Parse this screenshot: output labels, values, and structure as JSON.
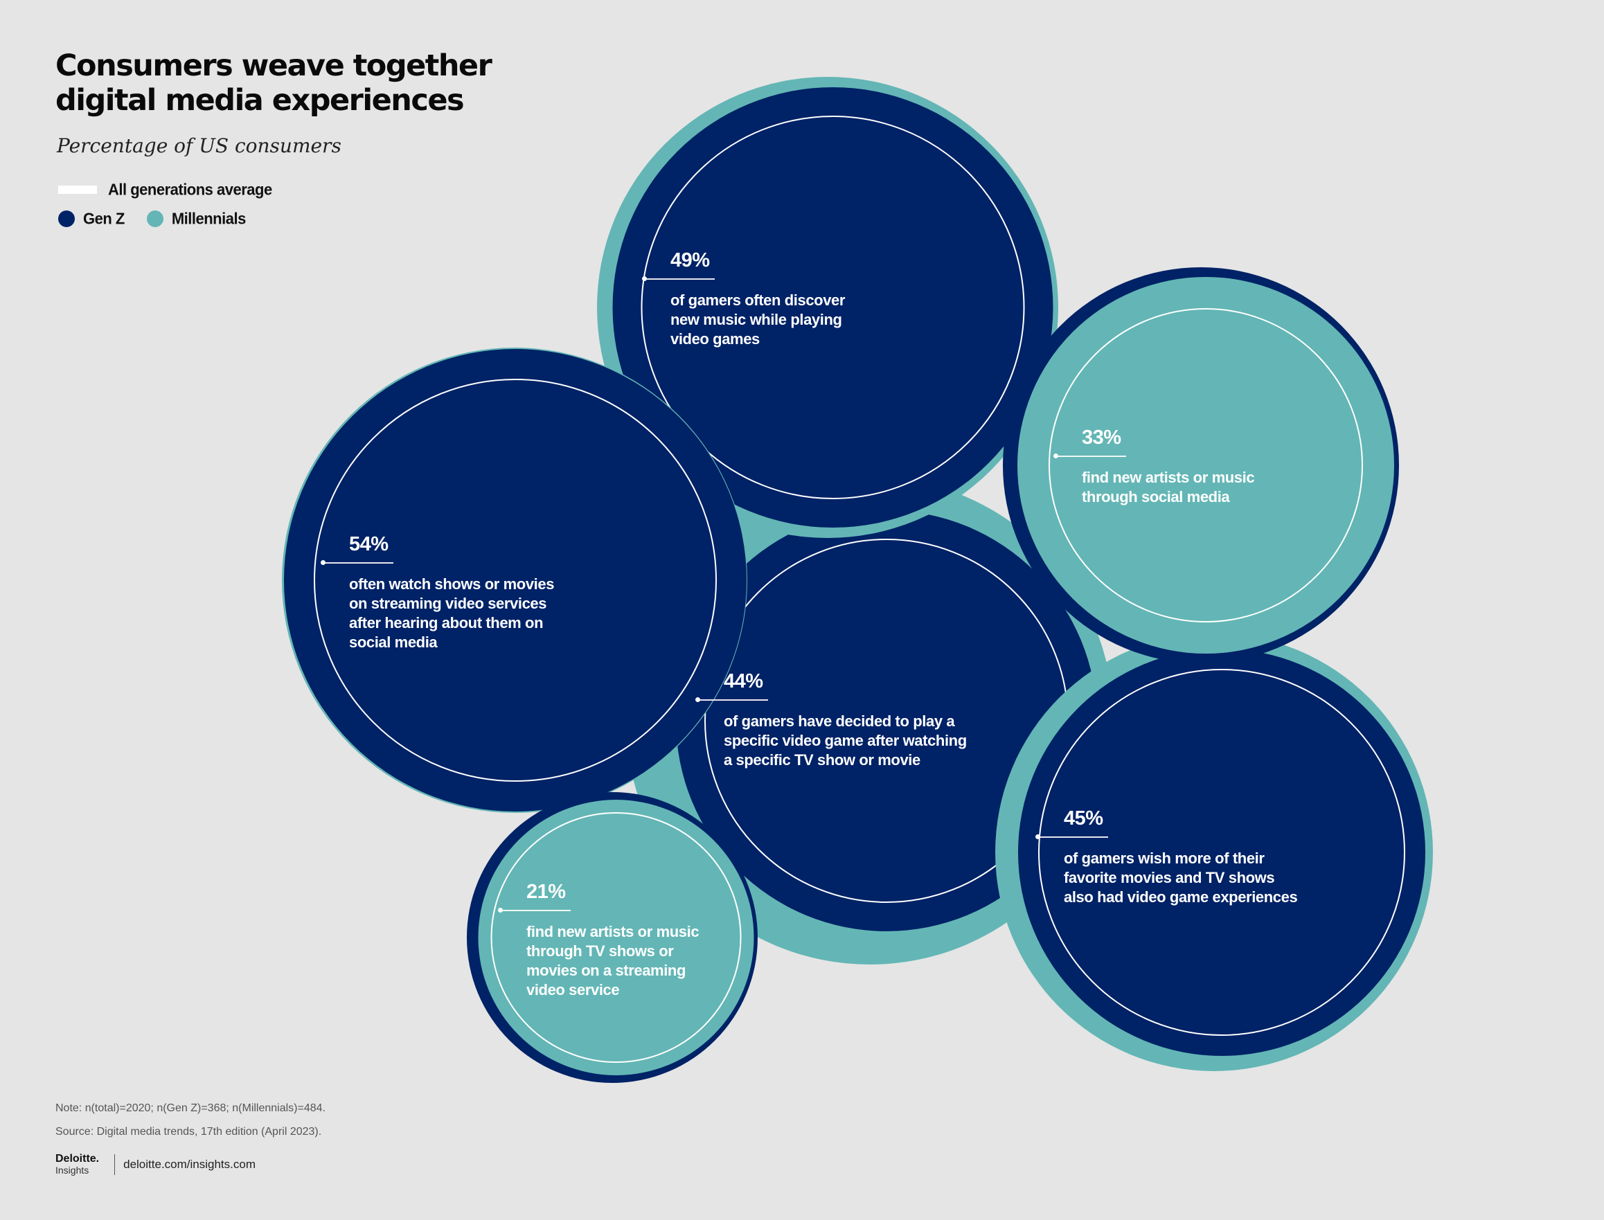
{
  "title": {
    "line1": "Consumers weave together",
    "line2": "digital media experiences"
  },
  "subtitle": "Percentage of US consumers",
  "legend": {
    "average": "All generations average",
    "genz": "Gen Z",
    "millennials": "Millennials"
  },
  "colors": {
    "genz": "#002266",
    "millennials": "#63b6b5",
    "background": "#e5e5e5",
    "ring": "#ffffff"
  },
  "chart_data": {
    "type": "bubble",
    "title": "Consumers weave together digital media experiences",
    "subtitle": "Percentage of US consumers",
    "unit": "%",
    "legend": [
      "All generations average",
      "Gen Z",
      "Millennials"
    ],
    "items": [
      {
        "id": "discover-music",
        "value_label": "49%",
        "average": 49,
        "text": "of gamers often discover new music while playing video games",
        "inner": "Gen Z",
        "outer": "Millennials"
      },
      {
        "id": "artists-social",
        "value_label": "33%",
        "average": 33,
        "text": "find new artists or music through social media",
        "inner": "Millennials",
        "outer": "Gen Z"
      },
      {
        "id": "watch-social",
        "value_label": "54%",
        "average": 54,
        "text": "often watch shows or movies on streaming video services after hearing about them on social media",
        "inner": "Gen Z",
        "outer": "Millennials"
      },
      {
        "id": "play-after-watch",
        "value_label": "44%",
        "average": 44,
        "text": "of gamers have decided to play a specific video game after  watching a specific TV show or movie",
        "inner": "Gen Z",
        "outer": "Millennials"
      },
      {
        "id": "wish-games",
        "value_label": "45%",
        "average": 45,
        "text": "of gamers wish more of their favorite movies and TV shows also had video game experiences",
        "inner": "Gen Z",
        "outer": "Millennials"
      },
      {
        "id": "artists-streaming",
        "value_label": "21%",
        "average": 21,
        "text": "find new artists or music through TV shows or movies on a streaming video service",
        "inner": "Millennials",
        "outer": "Gen Z"
      }
    ]
  },
  "annotations": {
    "discover_music": {
      "pct": "49%",
      "lines": [
        "of gamers often discover",
        "new music while playing",
        "video games"
      ]
    },
    "artists_social": {
      "pct": "33%",
      "lines": [
        "find new artists or music",
        "through social media"
      ]
    },
    "watch_social": {
      "pct": "54%",
      "lines": [
        "often watch shows or movies",
        "on streaming video services",
        "after hearing about them on",
        "social media"
      ]
    },
    "play_after_watch": {
      "pct": "44%",
      "lines": [
        "of gamers have decided to play a",
        "specific video game after  watching",
        "a specific TV show or movie"
      ]
    },
    "wish_games": {
      "pct": "45%",
      "lines": [
        "of gamers wish more of their",
        "favorite movies and TV shows",
        "also had video game experiences"
      ]
    },
    "artists_streaming": {
      "pct": "21%",
      "lines": [
        "find new artists or music",
        "through TV shows or",
        "movies on a streaming",
        "video service"
      ]
    }
  },
  "note": "Note: n(total)=2020; n(Gen Z)=368; n(Millennials)=484.",
  "source": "Source: Digital media trends, 17th edition (April 2023).",
  "footer": {
    "brand": "Deloitte.",
    "brand_sub": "Insights",
    "url": "deloitte.com/insights.com"
  }
}
